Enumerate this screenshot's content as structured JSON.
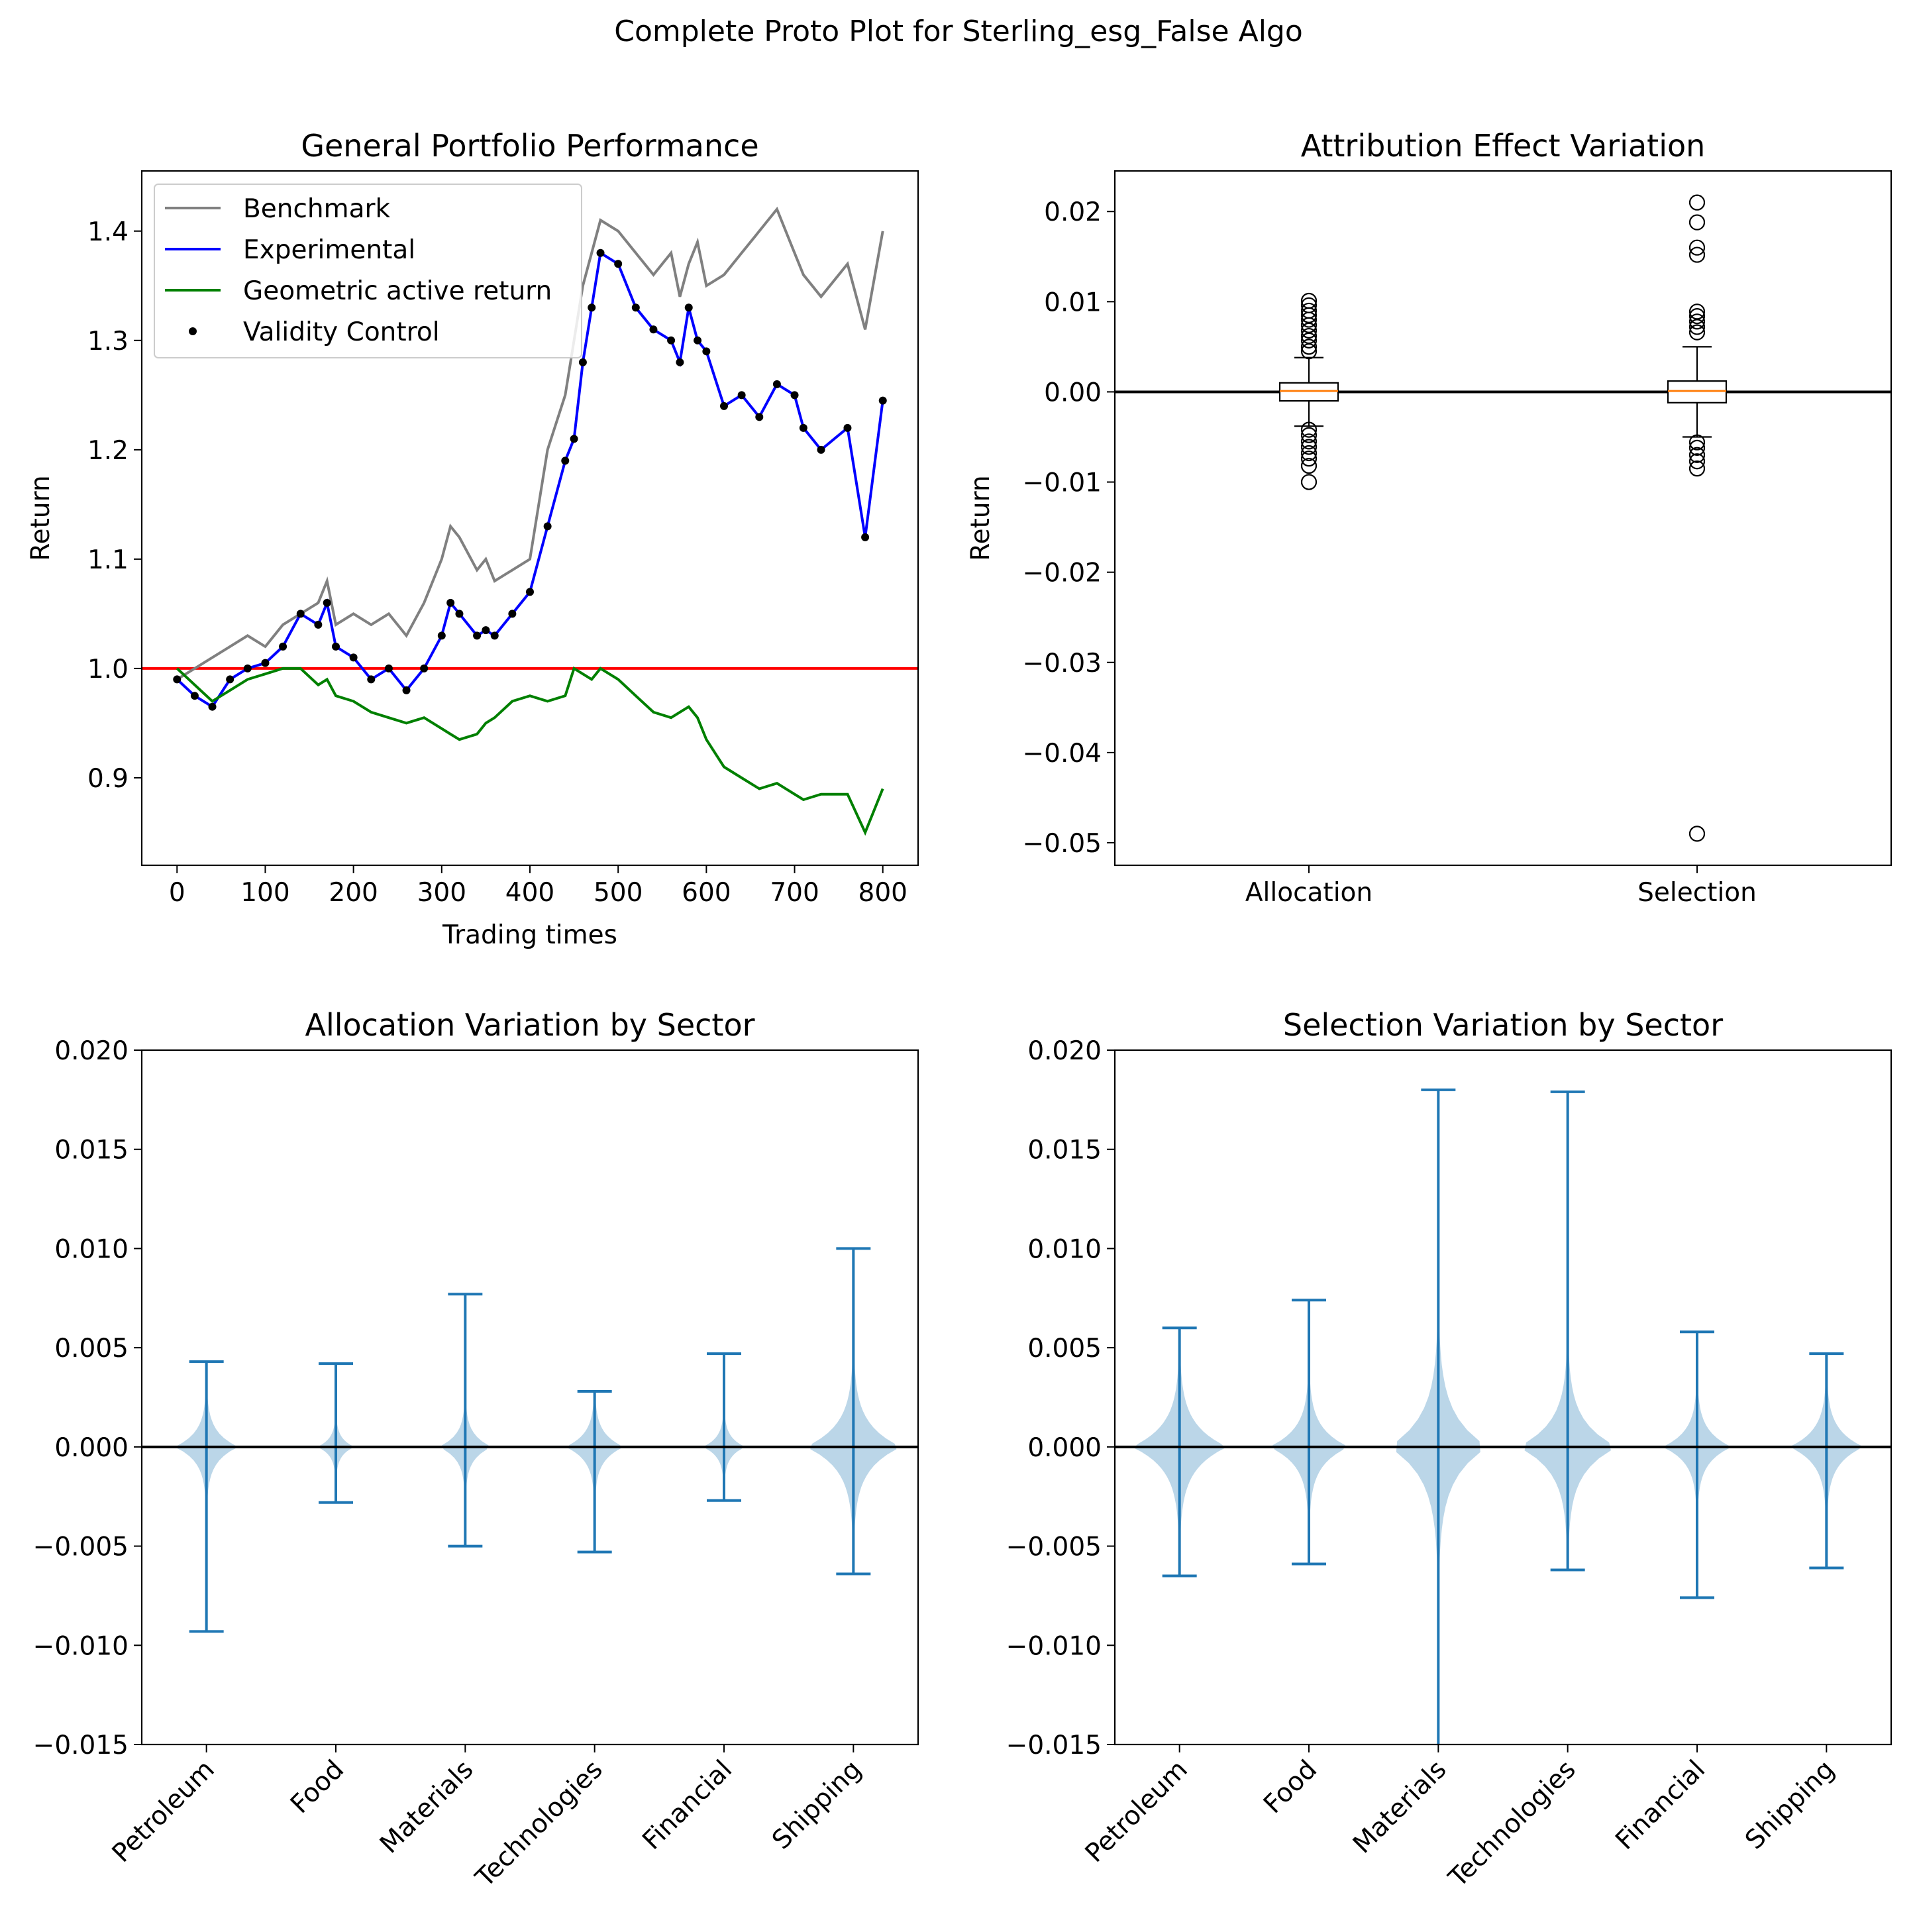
{
  "figure": {
    "suptitle": "Complete Proto Plot for Sterling_esg_False Algo"
  },
  "chart_data": [
    {
      "type": "line",
      "title": "General Portfolio Performance",
      "xlabel": "Trading times",
      "ylabel": "Return",
      "xlim": [
        -40,
        840
      ],
      "ylim": [
        0.82,
        1.455
      ],
      "xticks": [
        0,
        100,
        200,
        300,
        400,
        500,
        600,
        700,
        800
      ],
      "xtick_labels": [
        "0",
        "100",
        "200",
        "300",
        "400",
        "500",
        "600",
        "700",
        "800"
      ],
      "yticks": [
        0.9,
        1.0,
        1.1,
        1.2,
        1.3,
        1.4
      ],
      "ytick_labels": [
        "0.9",
        "1.0",
        "1.1",
        "1.2",
        "1.3",
        "1.4"
      ],
      "legend_position": "upper-left",
      "reference_line": {
        "y": 1.0,
        "color": "#ff0000"
      },
      "series": [
        {
          "name": "Benchmark",
          "color": "#808080",
          "marker": "line",
          "x": [
            0,
            20,
            40,
            60,
            80,
            100,
            120,
            140,
            160,
            170,
            180,
            200,
            220,
            240,
            260,
            280,
            300,
            310,
            320,
            340,
            350,
            360,
            380,
            400,
            420,
            440,
            450,
            460,
            470,
            480,
            500,
            520,
            540,
            560,
            570,
            580,
            590,
            600,
            620,
            640,
            660,
            680,
            700,
            710,
            730,
            760,
            780,
            800
          ],
          "values": [
            0.99,
            1.0,
            1.01,
            1.02,
            1.03,
            1.02,
            1.04,
            1.05,
            1.06,
            1.08,
            1.04,
            1.05,
            1.04,
            1.05,
            1.03,
            1.06,
            1.1,
            1.13,
            1.12,
            1.09,
            1.1,
            1.08,
            1.09,
            1.1,
            1.2,
            1.25,
            1.3,
            1.35,
            1.38,
            1.41,
            1.4,
            1.38,
            1.36,
            1.38,
            1.34,
            1.37,
            1.39,
            1.35,
            1.36,
            1.38,
            1.4,
            1.42,
            1.38,
            1.36,
            1.34,
            1.37,
            1.31,
            1.4
          ]
        },
        {
          "name": "Experimental",
          "color": "#0000ff",
          "marker": "line",
          "x": [
            0,
            20,
            40,
            60,
            80,
            100,
            120,
            140,
            160,
            170,
            180,
            200,
            220,
            240,
            260,
            280,
            300,
            310,
            320,
            340,
            350,
            360,
            380,
            400,
            420,
            440,
            450,
            460,
            470,
            480,
            500,
            520,
            540,
            560,
            570,
            580,
            590,
            600,
            620,
            640,
            660,
            680,
            700,
            710,
            730,
            760,
            780,
            800
          ],
          "values": [
            0.99,
            0.975,
            0.965,
            0.99,
            1.0,
            1.005,
            1.02,
            1.05,
            1.04,
            1.06,
            1.02,
            1.01,
            0.99,
            1.0,
            0.98,
            1.0,
            1.03,
            1.06,
            1.05,
            1.03,
            1.035,
            1.03,
            1.05,
            1.07,
            1.13,
            1.19,
            1.21,
            1.28,
            1.33,
            1.38,
            1.37,
            1.33,
            1.31,
            1.3,
            1.28,
            1.33,
            1.3,
            1.29,
            1.24,
            1.25,
            1.23,
            1.26,
            1.25,
            1.22,
            1.2,
            1.22,
            1.12,
            1.245
          ]
        },
        {
          "name": "Geometric active return",
          "color": "#008000",
          "marker": "line",
          "x": [
            0,
            20,
            40,
            60,
            80,
            100,
            120,
            140,
            160,
            170,
            180,
            200,
            220,
            240,
            260,
            280,
            300,
            310,
            320,
            340,
            350,
            360,
            380,
            400,
            420,
            440,
            450,
            460,
            470,
            480,
            500,
            520,
            540,
            560,
            570,
            580,
            590,
            600,
            620,
            640,
            660,
            680,
            700,
            710,
            730,
            760,
            780,
            800
          ],
          "values": [
            1.0,
            0.985,
            0.97,
            0.98,
            0.99,
            0.995,
            1.0,
            1.0,
            0.985,
            0.99,
            0.975,
            0.97,
            0.96,
            0.955,
            0.95,
            0.955,
            0.945,
            0.94,
            0.935,
            0.94,
            0.95,
            0.955,
            0.97,
            0.975,
            0.97,
            0.975,
            1.0,
            0.995,
            0.99,
            1.0,
            0.99,
            0.975,
            0.96,
            0.955,
            0.96,
            0.965,
            0.955,
            0.935,
            0.91,
            0.9,
            0.89,
            0.895,
            0.885,
            0.88,
            0.885,
            0.885,
            0.85,
            0.89
          ]
        },
        {
          "name": "Validity Control",
          "color": "#000000",
          "marker": "dot",
          "same_as": "Experimental"
        }
      ]
    },
    {
      "type": "box",
      "title": "Attribution Effect Variation",
      "ylabel": "Return",
      "categories": [
        "Allocation",
        "Selection"
      ],
      "ylim": [
        -0.0525,
        0.0245
      ],
      "yticks": [
        -0.05,
        -0.04,
        -0.03,
        -0.02,
        -0.01,
        0.0,
        0.01,
        0.02
      ],
      "ytick_labels": [
        "−0.05",
        "−0.04",
        "−0.03",
        "−0.02",
        "−0.01",
        "0.00",
        "0.01",
        "0.02"
      ],
      "reference_line": {
        "y": 0.0,
        "color": "#000000"
      },
      "boxes": [
        {
          "name": "Allocation",
          "whisker_low": -0.0038,
          "q1": -0.001,
          "median": 0.0001,
          "q3": 0.001,
          "whisker_high": 0.0038,
          "outliers": [
            0.0101,
            0.0096,
            0.009,
            0.0085,
            0.008,
            0.0074,
            0.0068,
            0.0062,
            0.0057,
            0.005,
            0.0045,
            -0.0042,
            -0.0048,
            -0.0055,
            -0.0061,
            -0.0068,
            -0.0074,
            -0.0082,
            -0.01
          ]
        },
        {
          "name": "Selection",
          "whisker_low": -0.005,
          "q1": -0.0012,
          "median": 0.0001,
          "q3": 0.0012,
          "whisker_high": 0.005,
          "outliers": [
            0.021,
            0.0188,
            0.016,
            0.0152,
            0.0089,
            0.0084,
            0.0078,
            0.0072,
            0.0066,
            -0.0056,
            -0.0062,
            -0.007,
            -0.0077,
            -0.0085,
            -0.049
          ]
        }
      ],
      "median_color": "#ff7f0e"
    },
    {
      "type": "violin",
      "title": "Allocation Variation by Sector",
      "categories": [
        "Petroleum",
        "Food",
        "Materials",
        "Technologies",
        "Financial",
        "Shipping"
      ],
      "ylim": [
        -0.015,
        0.02
      ],
      "yticks": [
        -0.015,
        -0.01,
        -0.005,
        0.0,
        0.005,
        0.01,
        0.015,
        0.02
      ],
      "ytick_labels": [
        "−0.015",
        "−0.010",
        "−0.005",
        "0.000",
        "0.005",
        "0.010",
        "0.015",
        "0.020"
      ],
      "reference_line": {
        "y": 0.0,
        "color": "#000000"
      },
      "color": "#1f77b4",
      "max": [
        0.0043,
        0.0042,
        0.0077,
        0.0028,
        0.0047,
        0.01
      ],
      "min": [
        -0.0093,
        -0.0028,
        -0.005,
        -0.0053,
        -0.0027,
        -0.0064
      ],
      "spread": [
        0.0012,
        0.0007,
        0.001,
        0.0011,
        0.0008,
        0.0018
      ]
    },
    {
      "type": "violin",
      "title": "Selection Variation by Sector",
      "categories": [
        "Petroleum",
        "Food",
        "Materials",
        "Technologies",
        "Financial",
        "Shipping"
      ],
      "ylim": [
        -0.015,
        0.02
      ],
      "yticks": [
        -0.015,
        -0.01,
        -0.005,
        0.0,
        0.005,
        0.01,
        0.015,
        0.02
      ],
      "ytick_labels": [
        "−0.015",
        "−0.010",
        "−0.005",
        "0.000",
        "0.005",
        "0.010",
        "0.015",
        "0.020"
      ],
      "reference_line": {
        "y": 0.0,
        "color": "#000000"
      },
      "color": "#1f77b4",
      "max": [
        0.006,
        0.0074,
        0.018,
        0.0179,
        0.0058,
        0.0047
      ],
      "min": [
        -0.0065,
        -0.0059,
        -0.0152,
        -0.0062,
        -0.0076,
        -0.0061
      ],
      "spread": [
        0.0018,
        0.0015,
        0.0025,
        0.002,
        0.0013,
        0.0014
      ]
    }
  ]
}
